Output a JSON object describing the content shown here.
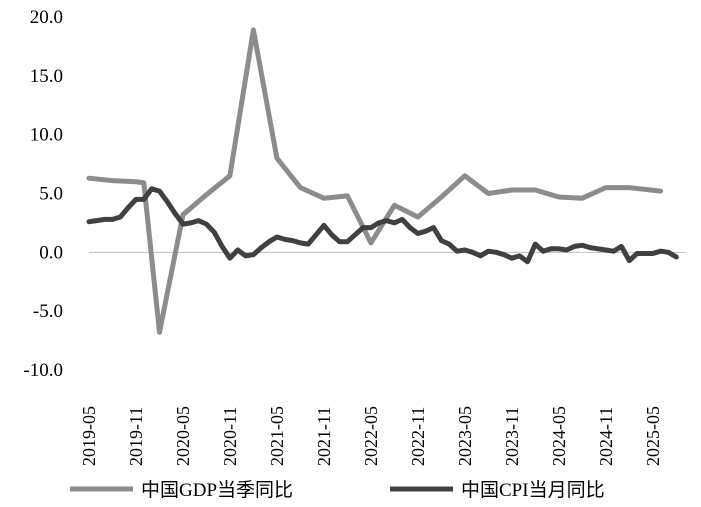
{
  "chart_data": {
    "type": "line",
    "title": "",
    "xlabel": "",
    "ylabel": "",
    "ylim": [
      -10,
      20
    ],
    "yticks": [
      "20.0",
      "15.0",
      "10.0",
      "5.0",
      "0.0",
      "-5.0",
      "-10.0"
    ],
    "x_tick_labels": [
      "2019-05",
      "2019-11",
      "2020-05",
      "2020-11",
      "2021-05",
      "2021-11",
      "2022-05",
      "2022-11",
      "2023-05",
      "2023-11",
      "2024-05",
      "2024-11",
      "2025-05"
    ],
    "x_start": "2019-05",
    "grid": false,
    "legend_position": "bottom",
    "series": [
      {
        "name": "中国GDP当季同比",
        "color": "#8c8c8c",
        "points": [
          [
            "2019-05",
            6.3
          ],
          [
            "2019-08",
            6.1
          ],
          [
            "2019-11",
            6.0
          ],
          [
            "2019-12",
            5.9
          ],
          [
            "2020-02",
            -6.8
          ],
          [
            "2020-05",
            3.2
          ],
          [
            "2020-08",
            4.9
          ],
          [
            "2020-11",
            6.5
          ],
          [
            "2021-02",
            18.9
          ],
          [
            "2021-05",
            8.0
          ],
          [
            "2021-08",
            5.5
          ],
          [
            "2021-11",
            4.6
          ],
          [
            "2022-02",
            4.8
          ],
          [
            "2022-05",
            0.8
          ],
          [
            "2022-08",
            4.0
          ],
          [
            "2022-11",
            3.0
          ],
          [
            "2023-02",
            4.7
          ],
          [
            "2023-05",
            6.5
          ],
          [
            "2023-08",
            5.0
          ],
          [
            "2023-11",
            5.3
          ],
          [
            "2024-02",
            5.3
          ],
          [
            "2024-05",
            4.7
          ],
          [
            "2024-08",
            4.6
          ],
          [
            "2024-11",
            5.5
          ],
          [
            "2025-02",
            5.5
          ],
          [
            "2025-06",
            5.2
          ]
        ]
      },
      {
        "name": "中国CPI当月同比",
        "color": "#404040",
        "points": [
          [
            "2019-05",
            2.6
          ],
          [
            "2019-06",
            2.7
          ],
          [
            "2019-07",
            2.8
          ],
          [
            "2019-08",
            2.8
          ],
          [
            "2019-09",
            3.0
          ],
          [
            "2019-10",
            3.8
          ],
          [
            "2019-11",
            4.5
          ],
          [
            "2019-12",
            4.5
          ],
          [
            "2020-01",
            5.4
          ],
          [
            "2020-02",
            5.2
          ],
          [
            "2020-03",
            4.3
          ],
          [
            "2020-04",
            3.3
          ],
          [
            "2020-05",
            2.4
          ],
          [
            "2020-06",
            2.5
          ],
          [
            "2020-07",
            2.7
          ],
          [
            "2020-08",
            2.4
          ],
          [
            "2020-09",
            1.7
          ],
          [
            "2020-10",
            0.5
          ],
          [
            "2020-11",
            -0.5
          ],
          [
            "2020-12",
            0.2
          ],
          [
            "2021-01",
            -0.3
          ],
          [
            "2021-02",
            -0.2
          ],
          [
            "2021-03",
            0.4
          ],
          [
            "2021-04",
            0.9
          ],
          [
            "2021-05",
            1.3
          ],
          [
            "2021-06",
            1.1
          ],
          [
            "2021-07",
            1.0
          ],
          [
            "2021-08",
            0.8
          ],
          [
            "2021-09",
            0.7
          ],
          [
            "2021-10",
            1.5
          ],
          [
            "2021-11",
            2.3
          ],
          [
            "2021-12",
            1.5
          ],
          [
            "2022-01",
            0.9
          ],
          [
            "2022-02",
            0.9
          ],
          [
            "2022-03",
            1.5
          ],
          [
            "2022-04",
            2.1
          ],
          [
            "2022-05",
            2.1
          ],
          [
            "2022-06",
            2.5
          ],
          [
            "2022-07",
            2.7
          ],
          [
            "2022-08",
            2.5
          ],
          [
            "2022-09",
            2.8
          ],
          [
            "2022-10",
            2.1
          ],
          [
            "2022-11",
            1.6
          ],
          [
            "2022-12",
            1.8
          ],
          [
            "2023-01",
            2.1
          ],
          [
            "2023-02",
            1.0
          ],
          [
            "2023-03",
            0.7
          ],
          [
            "2023-04",
            0.1
          ],
          [
            "2023-05",
            0.2
          ],
          [
            "2023-06",
            0.0
          ],
          [
            "2023-07",
            -0.3
          ],
          [
            "2023-08",
            0.1
          ],
          [
            "2023-09",
            0.0
          ],
          [
            "2023-10",
            -0.2
          ],
          [
            "2023-11",
            -0.5
          ],
          [
            "2023-12",
            -0.3
          ],
          [
            "2024-01",
            -0.8
          ],
          [
            "2024-02",
            0.7
          ],
          [
            "2024-03",
            0.1
          ],
          [
            "2024-04",
            0.3
          ],
          [
            "2024-05",
            0.3
          ],
          [
            "2024-06",
            0.2
          ],
          [
            "2024-07",
            0.5
          ],
          [
            "2024-08",
            0.6
          ],
          [
            "2024-09",
            0.4
          ],
          [
            "2024-10",
            0.3
          ],
          [
            "2024-11",
            0.2
          ],
          [
            "2024-12",
            0.1
          ],
          [
            "2025-01",
            0.5
          ],
          [
            "2025-02",
            -0.7
          ],
          [
            "2025-03",
            -0.1
          ],
          [
            "2025-04",
            -0.1
          ],
          [
            "2025-05",
            -0.1
          ],
          [
            "2025-06",
            0.1
          ],
          [
            "2025-07",
            0.0
          ],
          [
            "2025-08",
            -0.4
          ]
        ]
      }
    ]
  }
}
